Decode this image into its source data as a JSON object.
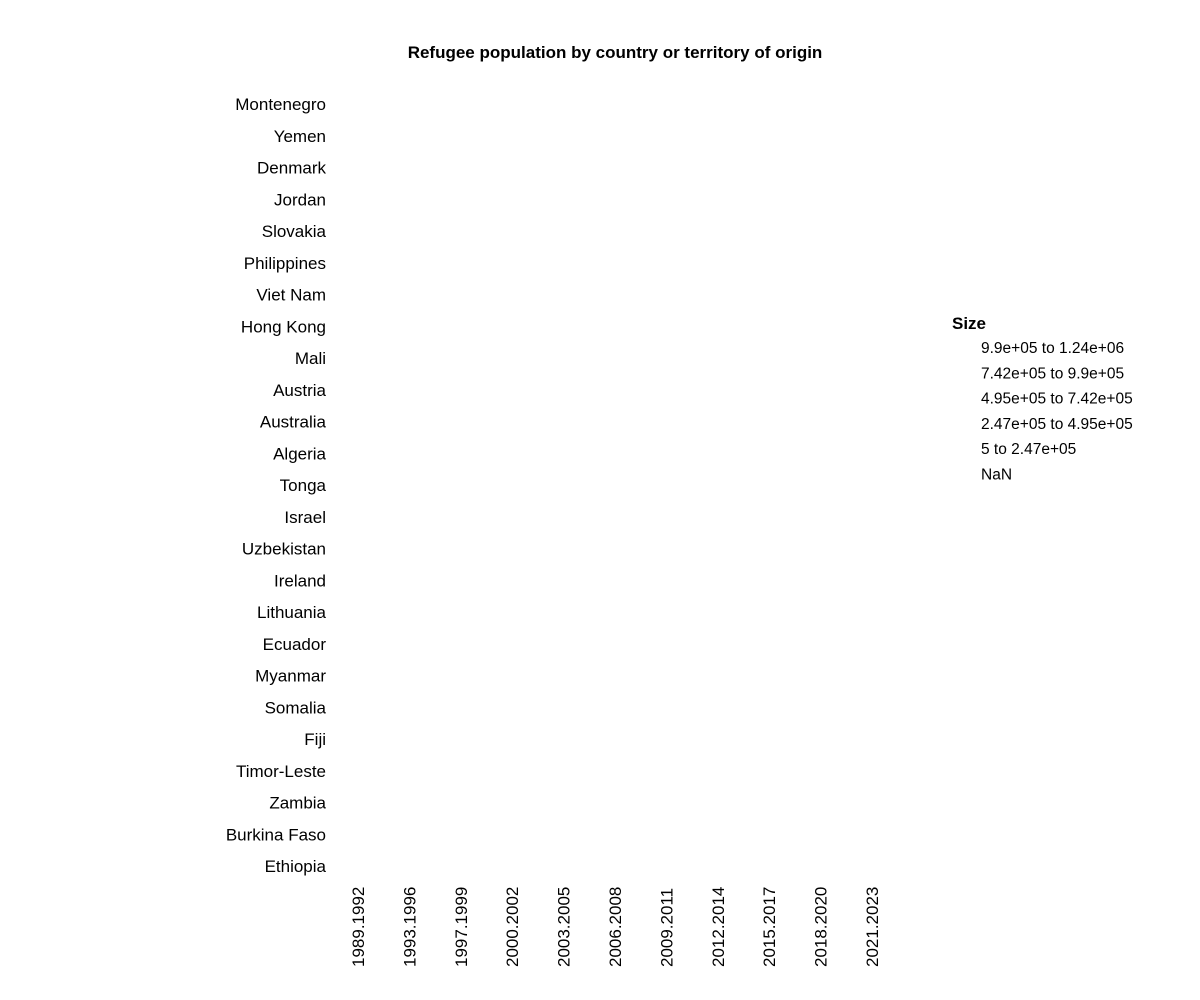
{
  "chart_data": {
    "type": "heatmap",
    "title": "Refugee population by country or territory of origin",
    "rows": [
      "Montenegro",
      "Yemen",
      "Denmark",
      "Jordan",
      "Slovakia",
      "Philippines",
      "Viet Nam",
      "Hong Kong",
      "Mali",
      "Austria",
      "Australia",
      "Algeria",
      "Tonga",
      "Israel",
      "Uzbekistan",
      "Ireland",
      "Lithuania",
      "Ecuador",
      "Myanmar",
      "Somalia",
      "Fiji",
      "Timor-Leste",
      "Zambia",
      "Burkina Faso",
      "Ethiopia"
    ],
    "columns": [
      "1989.1992",
      "1993.1996",
      "1997.1999",
      "2000.2002",
      "2003.2005",
      "2006.2008",
      "2009.2011",
      "2012.2014",
      "2015.2017",
      "2018.2020",
      "2021.2023"
    ],
    "values": [],
    "legend": {
      "title": "Size",
      "items": [
        "9.9e+05 to 1.24e+06",
        "7.42e+05 to 9.9e+05",
        "4.95e+05 to 7.42e+05",
        "2.47e+05 to 4.95e+05",
        "5 to 2.47e+05",
        "NaN"
      ],
      "placement": "right"
    },
    "grid": false
  }
}
